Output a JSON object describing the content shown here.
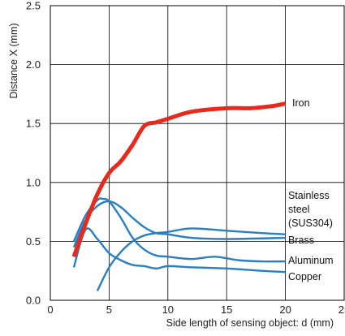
{
  "chart_data": {
    "type": "line",
    "xlabel": "Side length of sensing object: d (mm)",
    "ylabel": "Distance X (mm)",
    "xlim": [
      0,
      25
    ],
    "ylim": [
      0,
      2.5
    ],
    "xticks": [
      "0",
      "5",
      "10",
      "15",
      "20",
      "25"
    ],
    "yticks": [
      "0.0",
      "0.5",
      "1.0",
      "1.5",
      "2.0",
      "2.5"
    ],
    "grid": true,
    "legend": "inline labels at right end of curves",
    "colors": {
      "iron": "#e8291c",
      "others": "#2a7fc0",
      "grid": "#000000"
    },
    "series": [
      {
        "name": "Iron",
        "color": "#e8291c",
        "points": [
          [
            2,
            0.37
          ],
          [
            3,
            0.65
          ],
          [
            4,
            0.9
          ],
          [
            5,
            1.08
          ],
          [
            6,
            1.18
          ],
          [
            7,
            1.32
          ],
          [
            8,
            1.48
          ],
          [
            9,
            1.51
          ],
          [
            10,
            1.54
          ],
          [
            12,
            1.6
          ],
          [
            15,
            1.63
          ],
          [
            17,
            1.63
          ],
          [
            19,
            1.65
          ],
          [
            20,
            1.67
          ]
        ]
      },
      {
        "name": "Stainless steel (SUS304)",
        "color": "#2a7fc0",
        "points": [
          [
            4,
            0.08
          ],
          [
            5,
            0.28
          ],
          [
            6,
            0.41
          ],
          [
            7,
            0.5
          ],
          [
            8,
            0.55
          ],
          [
            9,
            0.57
          ],
          [
            10,
            0.58
          ],
          [
            12,
            0.61
          ],
          [
            15,
            0.59
          ],
          [
            18,
            0.57
          ],
          [
            20,
            0.56
          ]
        ]
      },
      {
        "name": "Brass",
        "color": "#2a7fc0",
        "points": [
          [
            2,
            0.45
          ],
          [
            3,
            0.68
          ],
          [
            4,
            0.8
          ],
          [
            5,
            0.84
          ],
          [
            6,
            0.79
          ],
          [
            7,
            0.7
          ],
          [
            8,
            0.62
          ],
          [
            9,
            0.57
          ],
          [
            10,
            0.56
          ],
          [
            12,
            0.53
          ],
          [
            15,
            0.52
          ],
          [
            20,
            0.53
          ]
        ]
      },
      {
        "name": "Aluminum",
        "color": "#2a7fc0",
        "points": [
          [
            2,
            0.5
          ],
          [
            3,
            0.72
          ],
          [
            4,
            0.85
          ],
          [
            4.5,
            0.86
          ],
          [
            5,
            0.84
          ],
          [
            6,
            0.7
          ],
          [
            7,
            0.53
          ],
          [
            8,
            0.43
          ],
          [
            9,
            0.38
          ],
          [
            10,
            0.37
          ],
          [
            12,
            0.35
          ],
          [
            14,
            0.37
          ],
          [
            16,
            0.34
          ],
          [
            18,
            0.33
          ],
          [
            20,
            0.33
          ]
        ]
      },
      {
        "name": "Copper",
        "color": "#2a7fc0",
        "points": [
          [
            2,
            0.28
          ],
          [
            3,
            0.6
          ],
          [
            4,
            0.52
          ],
          [
            5,
            0.4
          ],
          [
            6,
            0.34
          ],
          [
            7,
            0.3
          ],
          [
            8,
            0.29
          ],
          [
            9,
            0.27
          ],
          [
            10,
            0.29
          ],
          [
            12,
            0.28
          ],
          [
            15,
            0.27
          ],
          [
            18,
            0.25
          ],
          [
            20,
            0.24
          ]
        ]
      }
    ],
    "labels": {
      "iron": "Iron",
      "stainless_line1": "Stainless",
      "stainless_line2": "steel",
      "stainless_line3": "(SUS304)",
      "brass": "Brass",
      "aluminum": "Aluminum",
      "copper": "Copper"
    }
  }
}
